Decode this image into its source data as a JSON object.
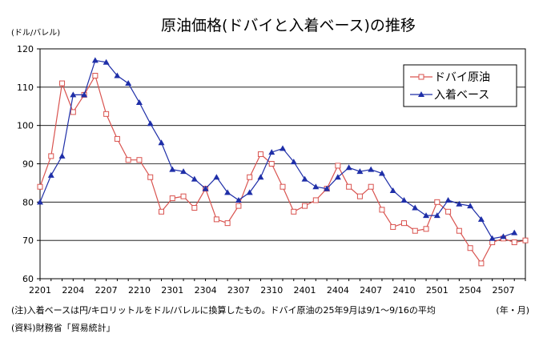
{
  "chart_data": {
    "type": "line",
    "title": "原油価格(ドバイと入着ベース)の推移",
    "y_unit_label": "(ドル/バレル)",
    "x_unit_label": "(年・月)",
    "ylim": [
      60,
      120
    ],
    "y_ticks": [
      "60",
      "70",
      "80",
      "90",
      "100",
      "110",
      "120"
    ],
    "grid": "horizontal",
    "legend_position": "top-right",
    "x_tick_labels": [
      "2201",
      "2204",
      "2207",
      "2210",
      "2301",
      "2304",
      "2307",
      "2310",
      "2401",
      "2404",
      "2407",
      "2410",
      "2501",
      "2504",
      "2507"
    ],
    "x": [
      "2201",
      "2202",
      "2203",
      "2204",
      "2205",
      "2206",
      "2207",
      "2208",
      "2209",
      "2210",
      "2211",
      "2212",
      "2301",
      "2302",
      "2303",
      "2304",
      "2305",
      "2306",
      "2307",
      "2308",
      "2309",
      "2310",
      "2311",
      "2312",
      "2401",
      "2402",
      "2403",
      "2404",
      "2405",
      "2406",
      "2407",
      "2408",
      "2409",
      "2410",
      "2411",
      "2412",
      "2501",
      "2502",
      "2503",
      "2504",
      "2505",
      "2506",
      "2507",
      "2508",
      "2509"
    ],
    "series": [
      {
        "name": "ドバイ原油",
        "color": "#d9534f",
        "marker": "open-square",
        "values": [
          84,
          92,
          111,
          103.5,
          108,
          113,
          103,
          96.5,
          91,
          91,
          86.5,
          77.5,
          81,
          81.5,
          78.5,
          83.5,
          75.5,
          74.5,
          79,
          86.5,
          92.5,
          90,
          84,
          77.5,
          79,
          80.5,
          83.5,
          89.5,
          84,
          81.5,
          84,
          78,
          73.5,
          74.5,
          72.5,
          73,
          80,
          77.5,
          72.5,
          68,
          64,
          69.5,
          70.5,
          69.5,
          70
        ]
      },
      {
        "name": "入着ベース",
        "color": "#1f2fa8",
        "marker": "filled-triangle",
        "values": [
          80,
          87,
          92,
          108,
          108,
          117,
          116.5,
          113,
          111,
          106,
          100.5,
          95.5,
          88.5,
          88,
          86,
          83.5,
          86.5,
          82.5,
          80.5,
          82.5,
          86.5,
          93,
          94,
          90.5,
          86,
          84,
          83.5,
          86.5,
          89,
          88,
          88.5,
          87.5,
          83,
          80.5,
          78.5,
          76.5,
          76.5,
          80.5,
          79.5,
          79,
          75.5,
          70.5,
          71,
          72,
          null
        ]
      }
    ]
  },
  "footnotes": {
    "note": "(注)入着ベースは円/キロリットルをドル/バレルに換算したもの。ドバイ原油の25年9月は9/1～9/16の平均",
    "source": "(資料)財務省「貿易統計」"
  }
}
